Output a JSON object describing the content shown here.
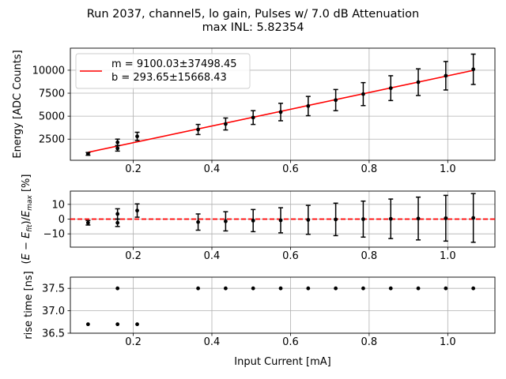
{
  "figure": {
    "title_line1": "Run 2037, channel5, lo gain, Pulses w/ 7.0 dB Attenuation",
    "title_line2": "max INL: 5.82354"
  },
  "chart_data": [
    {
      "type": "scatter",
      "panel": "energy",
      "ylabel": "Energy [ADC Counts]",
      "xlabel": "",
      "xlim": [
        0.04,
        1.12
      ],
      "ylim": [
        200,
        12400
      ],
      "xticks": [
        0.2,
        0.4,
        0.6,
        0.8,
        1.0
      ],
      "xtick_labels": [
        "0.2",
        "0.4",
        "0.6",
        "0.8",
        "1.0"
      ],
      "yticks": [
        2500,
        5000,
        7500,
        10000
      ],
      "ytick_labels": [
        "2500",
        "5000",
        "7500",
        "10000"
      ],
      "grid": true,
      "legend_placement": "top-left",
      "legend": [
        "m = 9100.03±37498.45",
        "b = 293.65±15668.43"
      ],
      "fit_line": {
        "color": "#ff0000",
        "x": [
          0.085,
          1.065
        ],
        "y": [
          1067,
          9985
        ]
      },
      "series": [
        {
          "color": "#000000",
          "x": [
            0.085,
            0.16,
            0.16,
            0.21,
            0.365,
            0.435,
            0.505,
            0.575,
            0.645,
            0.715,
            0.785,
            0.855,
            0.925,
            0.995,
            1.065
          ],
          "y": [
            900,
            1500,
            2150,
            2800,
            3550,
            4150,
            4850,
            5450,
            6100,
            6750,
            7400,
            8050,
            8700,
            9400,
            10100
          ],
          "err": [
            150,
            300,
            350,
            450,
            550,
            650,
            750,
            950,
            1050,
            1150,
            1250,
            1350,
            1450,
            1550,
            1650
          ]
        }
      ]
    },
    {
      "type": "scatter",
      "panel": "residual",
      "ylabel": "(E − E_fit)/E_max [%]",
      "xlabel": "",
      "xlim": [
        0.04,
        1.12
      ],
      "ylim": [
        -19,
        19
      ],
      "xticks": [
        0.2,
        0.4,
        0.6,
        0.8,
        1.0
      ],
      "xtick_labels": [
        "0.2",
        "0.4",
        "0.6",
        "0.8",
        "1.0"
      ],
      "yticks": [
        -10,
        0,
        10
      ],
      "ytick_labels": [
        "−10",
        "0",
        "10"
      ],
      "grid": true,
      "zero_line": {
        "color": "#ff0000",
        "style": "dashed",
        "y": 0
      },
      "series": [
        {
          "color": "#000000",
          "x": [
            0.085,
            0.16,
            0.16,
            0.21,
            0.365,
            0.435,
            0.505,
            0.575,
            0.645,
            0.715,
            0.785,
            0.855,
            0.925,
            0.995,
            1.065
          ],
          "y": [
            -2.5,
            -2.5,
            3.5,
            5.8,
            -2.0,
            -1.5,
            -1.0,
            -0.8,
            -0.5,
            -0.2,
            0.0,
            0.2,
            0.4,
            0.6,
            0.8
          ],
          "err": [
            1.5,
            2.5,
            3.5,
            4.5,
            5.5,
            6.5,
            7.5,
            8.5,
            9.8,
            11.0,
            12.2,
            13.4,
            14.5,
            15.5,
            16.5
          ]
        }
      ]
    },
    {
      "type": "scatter",
      "panel": "risetime",
      "ylabel": "rise time [ns]",
      "xlabel": "Input Current [mA]",
      "xlim": [
        0.04,
        1.12
      ],
      "ylim": [
        36.5,
        37.75
      ],
      "xticks": [
        0.2,
        0.4,
        0.6,
        0.8,
        1.0
      ],
      "xtick_labels": [
        "0.2",
        "0.4",
        "0.6",
        "0.8",
        "1.0"
      ],
      "yticks": [
        36.5,
        37.0,
        37.5
      ],
      "ytick_labels": [
        "36.5",
        "37.0",
        "37.5"
      ],
      "grid": true,
      "series": [
        {
          "color": "#000000",
          "x": [
            0.085,
            0.16,
            0.16,
            0.21,
            0.365,
            0.435,
            0.505,
            0.575,
            0.645,
            0.715,
            0.785,
            0.855,
            0.925,
            0.995,
            1.065
          ],
          "y": [
            36.7,
            36.7,
            37.5,
            36.7,
            37.5,
            37.5,
            37.5,
            37.5,
            37.5,
            37.5,
            37.5,
            37.5,
            37.5,
            37.5,
            37.5
          ]
        }
      ]
    }
  ]
}
